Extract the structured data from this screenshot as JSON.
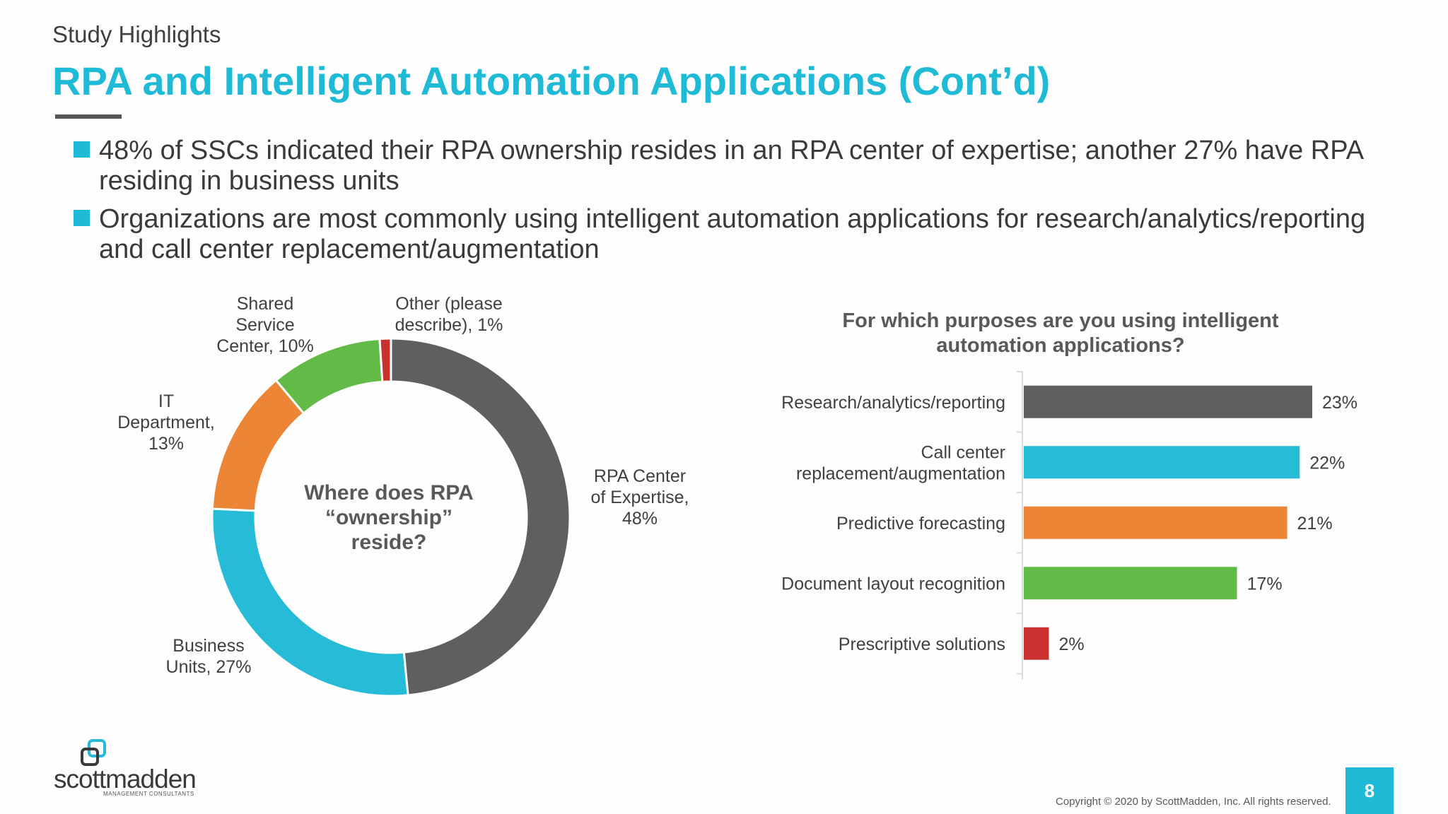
{
  "slide": {
    "kicker": "Study Highlights",
    "title": "RPA and Intelligent Automation Applications (Cont’d)",
    "bullets": [
      "48% of SSCs indicated their RPA ownership resides in an RPA center of expertise; another 27% have RPA residing in business units",
      "Organizations are most commonly using intelligent automation applications for research/analytics/reporting and call center replacement/augmentation"
    ],
    "accent_color": "#1ebad6",
    "copyright": "Copyright © 2020 by ScottMadden, Inc. All rights reserved.",
    "page_number": "8",
    "logo": {
      "name": "scottmadden",
      "tagline": "MANAGEMENT CONSULTANTS",
      "icon": "interlocking-squares-icon"
    }
  },
  "chart_data": [
    {
      "type": "pie",
      "donut": true,
      "center_label_lines": [
        "Where does RPA",
        "“ownership”",
        "reside?"
      ],
      "slices": [
        {
          "name": "RPA Center of Expertise",
          "value": 48,
          "color": "#5f5f61",
          "label_lines": [
            "RPA Center",
            "of Expertise,",
            "48%"
          ]
        },
        {
          "name": "Business Units",
          "value": 27,
          "color": "#26bcd7",
          "label_lines": [
            "Business",
            "Units, 27%"
          ]
        },
        {
          "name": "IT Department",
          "value": 13,
          "color": "#ed8536",
          "label_lines": [
            "IT",
            "Department,",
            "13%"
          ]
        },
        {
          "name": "Shared Service Center",
          "value": 10,
          "color": "#63bb47",
          "label_lines": [
            "Shared",
            "Service",
            "Center, 10%"
          ]
        },
        {
          "name": "Other (please describe)",
          "value": 1,
          "color": "#c8312e",
          "label_lines": [
            "Other (please",
            "describe), 1%"
          ]
        }
      ]
    },
    {
      "type": "bar",
      "orientation": "horizontal",
      "title_lines": [
        "For which purposes are you using intelligent",
        "automation applications?"
      ],
      "unit": "%",
      "xlim": [
        0,
        23
      ],
      "grid": false,
      "categories": [
        {
          "label_lines": [
            "Research/analytics/reporting"
          ],
          "value": 23,
          "value_label": "23%",
          "color": "#5f5f61"
        },
        {
          "label_lines": [
            "Call center",
            "replacement/augmentation"
          ],
          "value": 22,
          "value_label": "22%",
          "color": "#26bcd7"
        },
        {
          "label_lines": [
            "Predictive forecasting"
          ],
          "value": 21,
          "value_label": "21%",
          "color": "#ed8536"
        },
        {
          "label_lines": [
            "Document layout recognition"
          ],
          "value": 17,
          "value_label": "17%",
          "color": "#63bb47"
        },
        {
          "label_lines": [
            "Prescriptive solutions"
          ],
          "value": 2,
          "value_label": "2%",
          "color": "#c8312e"
        }
      ]
    }
  ]
}
